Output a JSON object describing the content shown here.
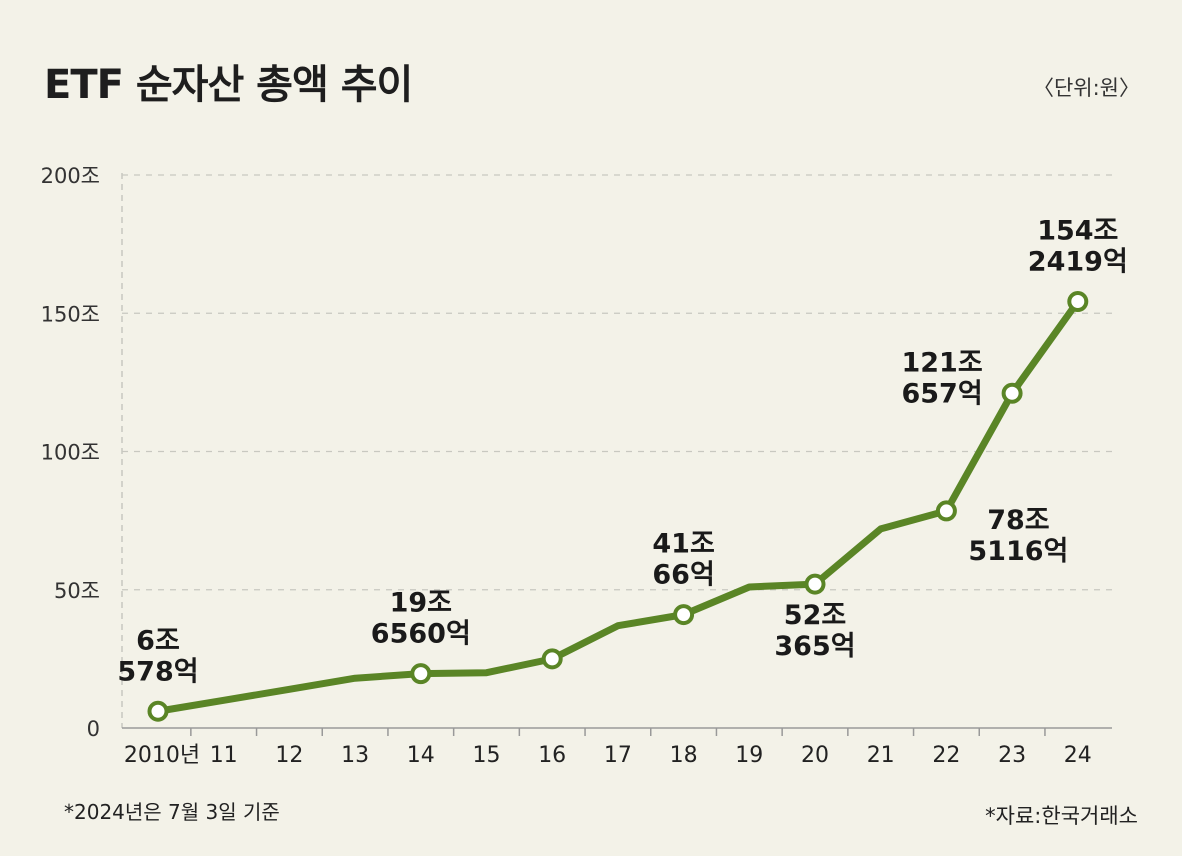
{
  "title": "ETF 순자산 총액 추이",
  "unit_note": "〈단위:원〉",
  "footnote": "*2024년은 7월 3일 기준",
  "source": "*자료:한국거래소",
  "colors": {
    "line": "#5a8526",
    "marker_fill": "#ffffff",
    "grid": "#c8c8c0",
    "background": "#f3f2e8"
  },
  "chart_data": {
    "type": "line",
    "title": "ETF 순자산 총액 추이",
    "xlabel": "",
    "ylabel": "",
    "grid": true,
    "ylim": [
      0,
      200
    ],
    "yticks": [
      {
        "value": 0,
        "label": "0"
      },
      {
        "value": 50,
        "label": "50조"
      },
      {
        "value": 100,
        "label": "100조"
      },
      {
        "value": 150,
        "label": "150조"
      },
      {
        "value": 200,
        "label": "200조"
      }
    ],
    "categories": [
      "2010년",
      "11",
      "12",
      "13",
      "14",
      "15",
      "16",
      "17",
      "18",
      "19",
      "20",
      "21",
      "22",
      "23",
      "24"
    ],
    "series": [
      {
        "values": [
          6.0578,
          10,
          14,
          18,
          19.656,
          20,
          25,
          37,
          41.0066,
          51,
          52.0365,
          72,
          78.5116,
          121.0657,
          154.2419
        ]
      }
    ],
    "markers": [
      0,
      4,
      6,
      8,
      10,
      12,
      13,
      14
    ],
    "data_labels": [
      {
        "index": 0,
        "lines": [
          "6조",
          "578억"
        ],
        "pos": "above"
      },
      {
        "index": 4,
        "lines": [
          "19조",
          "6560억"
        ],
        "pos": "above"
      },
      {
        "index": 8,
        "lines": [
          "41조",
          "66억"
        ],
        "pos": "above"
      },
      {
        "index": 10,
        "lines": [
          "52조",
          "365억"
        ],
        "pos": "below"
      },
      {
        "index": 12,
        "lines": [
          "78조",
          "5116억"
        ],
        "pos": "below-right"
      },
      {
        "index": 13,
        "lines": [
          "121조",
          "657억"
        ],
        "pos": "left"
      },
      {
        "index": 14,
        "lines": [
          "154조",
          "2419억"
        ],
        "pos": "above"
      }
    ]
  }
}
